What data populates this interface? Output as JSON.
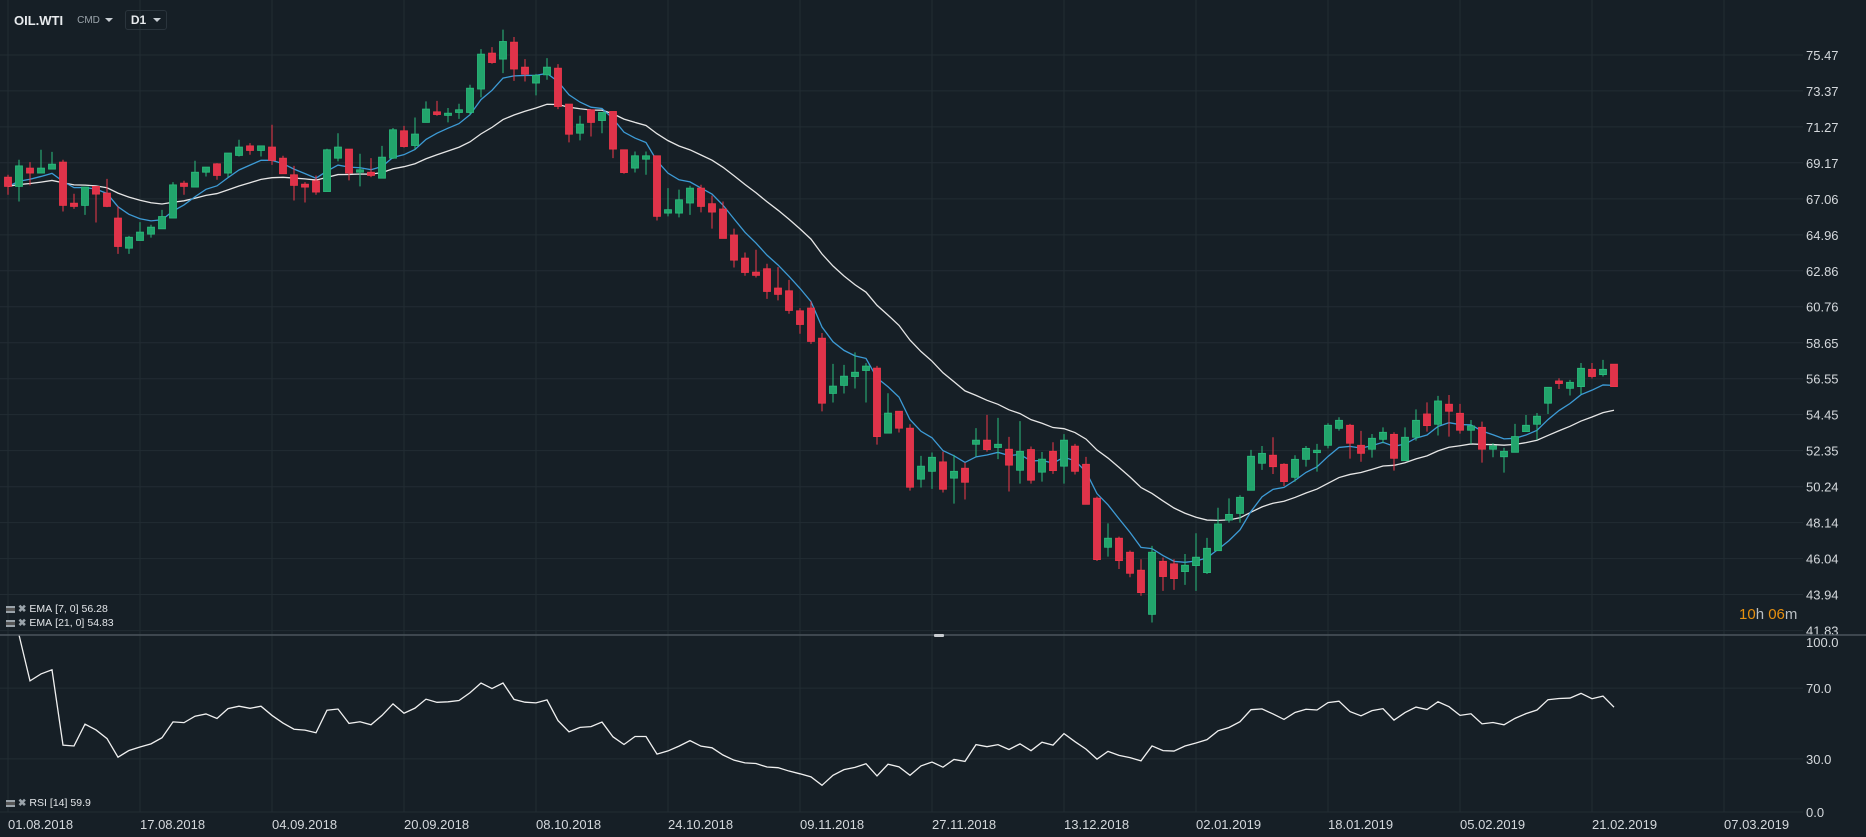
{
  "header": {
    "symbol": "OIL.WTI",
    "market": "CMD",
    "timeframe": "D1"
  },
  "indicators": {
    "ema7": {
      "label": "EMA",
      "params": "[7, 0]",
      "value": "56.28",
      "color": "#3d9bd6"
    },
    "ema21": {
      "label": "EMA",
      "params": "[21, 0]",
      "value": "54.83",
      "color": "#e6e6e6"
    },
    "rsi": {
      "label": "RSI",
      "params": "[14]",
      "value": "59.9",
      "color": "#f0f0f0"
    }
  },
  "countdown": {
    "hours": "10",
    "h_unit": "h",
    "minutes": "06",
    "m_unit": "m"
  },
  "colors": {
    "background": "#161f26",
    "grid": "#222c33",
    "up": "#22a56c",
    "down": "#e0334a",
    "countdown": "#e8900f"
  },
  "chart_data": {
    "type": "candlestick",
    "title": "OIL.WTI",
    "price_ticks": [
      "75.47",
      "73.37",
      "71.27",
      "69.17",
      "67.06",
      "64.96",
      "62.86",
      "60.76",
      "58.65",
      "56.55",
      "54.45",
      "52.35",
      "50.24",
      "48.14",
      "46.04",
      "43.94",
      "41.83"
    ],
    "ylim": [
      41.83,
      75.47
    ],
    "rsi_ticks": [
      "100.0",
      "70.0",
      "30.0",
      "0.0"
    ],
    "rsi_ylim": [
      0,
      100
    ],
    "date_ticks": [
      "01.08.2018",
      "17.08.2018",
      "04.09.2018",
      "20.09.2018",
      "08.10.2018",
      "24.10.2018",
      "09.11.2018",
      "27.11.2018",
      "13.12.2018",
      "02.01.2019",
      "18.01.2019",
      "05.02.2019",
      "21.02.2019",
      "07.03.2019"
    ],
    "grid": true,
    "ema_periods": [
      7,
      21
    ],
    "rsi_period": 14,
    "columns": [
      "date",
      "open",
      "high",
      "low",
      "close"
    ],
    "candles": [
      [
        "2018-08-01",
        68.33,
        68.47,
        67.3,
        67.79
      ],
      [
        "2018-08-02",
        67.79,
        69.35,
        66.91,
        68.99
      ],
      [
        "2018-08-03",
        68.86,
        69.21,
        67.85,
        68.57
      ],
      [
        "2018-08-06",
        68.57,
        69.93,
        68.57,
        68.86
      ],
      [
        "2018-08-07",
        68.8,
        69.81,
        68.8,
        69.09
      ],
      [
        "2018-08-08",
        69.21,
        69.35,
        66.32,
        66.68
      ],
      [
        "2018-08-09",
        66.81,
        67.36,
        66.48,
        66.62
      ],
      [
        "2018-08-10",
        66.68,
        67.75,
        66.13,
        67.75
      ],
      [
        "2018-08-13",
        67.79,
        67.79,
        65.68,
        67.34
      ],
      [
        "2018-08-14",
        67.4,
        68.23,
        66.58,
        66.62
      ],
      [
        "2018-08-15",
        65.94,
        66.62,
        63.85,
        64.28
      ],
      [
        "2018-08-16",
        64.18,
        64.9,
        63.85,
        64.82
      ],
      [
        "2018-08-17",
        64.63,
        65.7,
        64.63,
        65.12
      ],
      [
        "2018-08-20",
        65.0,
        65.55,
        64.8,
        65.41
      ],
      [
        "2018-08-21",
        65.31,
        66.42,
        65.31,
        66.03
      ],
      [
        "2018-08-22",
        65.94,
        68.04,
        65.94,
        67.88
      ],
      [
        "2018-08-23",
        67.98,
        68.12,
        67.3,
        67.79
      ],
      [
        "2018-08-24",
        67.75,
        69.29,
        67.75,
        68.62
      ],
      [
        "2018-08-27",
        68.62,
        68.92,
        68.37,
        68.92
      ],
      [
        "2018-08-28",
        69.11,
        69.15,
        68.18,
        68.43
      ],
      [
        "2018-08-29",
        68.57,
        69.74,
        68.33,
        69.74
      ],
      [
        "2018-08-30",
        69.6,
        70.52,
        69.54,
        70.09
      ],
      [
        "2018-08-31",
        70.16,
        70.32,
        69.64,
        69.89
      ],
      [
        "2018-09-03",
        69.89,
        70.16,
        69.54,
        70.16
      ],
      [
        "2018-09-04",
        70.09,
        71.39,
        69.05,
        69.31
      ],
      [
        "2018-09-05",
        69.44,
        69.58,
        68.53,
        68.53
      ],
      [
        "2018-09-06",
        68.47,
        68.99,
        66.97,
        67.85
      ],
      [
        "2018-09-07",
        67.92,
        68.04,
        66.85,
        67.75
      ],
      [
        "2018-09-10",
        68.12,
        68.43,
        67.3,
        67.46
      ],
      [
        "2018-09-11",
        67.49,
        69.99,
        67.49,
        69.93
      ],
      [
        "2018-09-12",
        69.44,
        70.9,
        69.25,
        70.09
      ],
      [
        "2018-09-13",
        69.97,
        69.97,
        68.14,
        68.57
      ],
      [
        "2018-09-14",
        68.62,
        69.7,
        67.79,
        68.76
      ],
      [
        "2018-09-17",
        68.62,
        69.44,
        68.33,
        68.43
      ],
      [
        "2018-09-18",
        68.27,
        70.16,
        68.27,
        69.5
      ],
      [
        "2018-09-19",
        69.44,
        71.2,
        69.4,
        71.1
      ],
      [
        "2018-09-20",
        71.04,
        71.33,
        70.06,
        70.12
      ],
      [
        "2018-09-21",
        70.18,
        71.82,
        69.93,
        70.85
      ],
      [
        "2018-09-24",
        71.53,
        72.76,
        71.53,
        72.31
      ],
      [
        "2018-09-25",
        72.15,
        72.79,
        71.92,
        71.99
      ],
      [
        "2018-09-26",
        71.94,
        72.37,
        71.53,
        72.07
      ],
      [
        "2018-09-27",
        72.11,
        72.62,
        71.74,
        72.27
      ],
      [
        "2018-09-28",
        72.11,
        73.73,
        71.97,
        73.53
      ],
      [
        "2018-10-01",
        73.48,
        75.81,
        72.99,
        75.52
      ],
      [
        "2018-10-02",
        75.58,
        75.93,
        74.96,
        75.03
      ],
      [
        "2018-10-03",
        75.23,
        76.95,
        74.41,
        76.26
      ],
      [
        "2018-10-04",
        76.22,
        76.52,
        73.96,
        74.65
      ],
      [
        "2018-10-05",
        74.76,
        75.23,
        73.92,
        74.35
      ],
      [
        "2018-10-08",
        73.83,
        74.37,
        73.11,
        74.28
      ],
      [
        "2018-10-09",
        74.31,
        75.29,
        74.02,
        74.76
      ],
      [
        "2018-10-10",
        74.7,
        74.94,
        72.31,
        72.46
      ],
      [
        "2018-10-11",
        72.6,
        72.6,
        70.36,
        70.84
      ],
      [
        "2018-10-12",
        70.9,
        71.92,
        70.48,
        71.43
      ],
      [
        "2018-10-15",
        72.27,
        72.27,
        70.71,
        71.53
      ],
      [
        "2018-10-16",
        71.64,
        72.11,
        70.9,
        72.11
      ],
      [
        "2018-10-17",
        72.17,
        72.17,
        69.44,
        69.97
      ],
      [
        "2018-10-18",
        69.93,
        69.93,
        68.53,
        68.6
      ],
      [
        "2018-10-19",
        68.86,
        69.83,
        68.6,
        69.58
      ],
      [
        "2018-10-22",
        69.38,
        69.83,
        68.47,
        69.58
      ],
      [
        "2018-10-23",
        69.58,
        69.6,
        65.8,
        66.04
      ],
      [
        "2018-10-24",
        66.23,
        67.69,
        66.04,
        66.43
      ],
      [
        "2018-10-25",
        66.23,
        67.6,
        65.98,
        67.01
      ],
      [
        "2018-10-26",
        66.82,
        67.83,
        66.13,
        67.69
      ],
      [
        "2018-10-29",
        67.69,
        67.89,
        66.27,
        66.62
      ],
      [
        "2018-10-30",
        66.78,
        67.25,
        65.32,
        66.29
      ],
      [
        "2018-10-31",
        66.47,
        66.91,
        64.75,
        64.75
      ],
      [
        "2018-11-01",
        64.95,
        65.32,
        63.05,
        63.48
      ],
      [
        "2018-11-02",
        63.6,
        63.93,
        62.57,
        62.76
      ],
      [
        "2018-11-05",
        62.78,
        64.09,
        62.47,
        62.59
      ],
      [
        "2018-11-06",
        62.98,
        63.27,
        61.22,
        61.65
      ],
      [
        "2018-11-07",
        61.85,
        63.07,
        61.13,
        61.48
      ],
      [
        "2018-11-08",
        61.69,
        62.33,
        60.35,
        60.54
      ],
      [
        "2018-11-09",
        60.52,
        60.68,
        59.18,
        59.72
      ],
      [
        "2018-11-12",
        60.68,
        61.07,
        58.59,
        58.73
      ],
      [
        "2018-11-13",
        58.92,
        59.22,
        54.64,
        55.12
      ],
      [
        "2018-11-14",
        55.69,
        57.42,
        55.16,
        56.12
      ],
      [
        "2018-11-15",
        56.16,
        57.36,
        55.69,
        56.7
      ],
      [
        "2018-11-16",
        56.68,
        58.09,
        55.98,
        56.93
      ],
      [
        "2018-11-19",
        57.03,
        57.46,
        55.16,
        57.29
      ],
      [
        "2018-11-20",
        57.17,
        57.3,
        52.7,
        53.17
      ],
      [
        "2018-11-21",
        53.37,
        55.7,
        53.37,
        54.54
      ],
      [
        "2018-11-22",
        54.65,
        54.65,
        53.41,
        53.66
      ],
      [
        "2018-11-23",
        53.66,
        53.89,
        50.01,
        50.21
      ],
      [
        "2018-11-26",
        50.68,
        52.04,
        50.19,
        51.44
      ],
      [
        "2018-11-27",
        51.14,
        52.24,
        50.11,
        51.96
      ],
      [
        "2018-11-28",
        51.69,
        52.29,
        49.9,
        50.09
      ],
      [
        "2018-11-29",
        50.74,
        52.1,
        49.25,
        51.14
      ],
      [
        "2018-11-30",
        51.32,
        51.65,
        49.49,
        50.5
      ],
      [
        "2018-12-03",
        52.72,
        53.66,
        52.0,
        52.96
      ],
      [
        "2018-12-04",
        52.96,
        54.44,
        52.29,
        52.41
      ],
      [
        "2018-12-05",
        52.53,
        54.26,
        51.85,
        52.72
      ],
      [
        "2018-12-06",
        52.43,
        53.15,
        49.96,
        51.5
      ],
      [
        "2018-12-07",
        51.2,
        54.07,
        50.42,
        52.31
      ],
      [
        "2018-12-10",
        52.41,
        52.59,
        50.42,
        50.62
      ],
      [
        "2018-12-11",
        51.09,
        52.27,
        50.54,
        51.85
      ],
      [
        "2018-12-12",
        52.31,
        52.84,
        50.99,
        51.18
      ],
      [
        "2018-12-13",
        51.44,
        53.31,
        50.42,
        52.96
      ],
      [
        "2018-12-14",
        52.61,
        52.74,
        50.95,
        51.14
      ],
      [
        "2018-12-17",
        51.55,
        51.98,
        49.21,
        49.21
      ],
      [
        "2018-12-18",
        49.57,
        49.66,
        45.9,
        45.98
      ],
      [
        "2018-12-19",
        46.7,
        48.1,
        46.15,
        47.23
      ],
      [
        "2018-12-20",
        47.23,
        47.32,
        45.43,
        45.92
      ],
      [
        "2018-12-21",
        46.41,
        46.51,
        44.95,
        45.18
      ],
      [
        "2018-12-24",
        45.36,
        46.0,
        43.87,
        44.05
      ],
      [
        "2018-12-26",
        42.78,
        46.78,
        42.3,
        46.41
      ],
      [
        "2018-12-27",
        45.88,
        46.1,
        44.15,
        44.99
      ],
      [
        "2018-12-28",
        45.73,
        46.0,
        44.21,
        44.87
      ],
      [
        "2018-12-31",
        45.28,
        46.31,
        44.5,
        45.65
      ],
      [
        "2019-01-02",
        45.63,
        47.52,
        44.15,
        46.12
      ],
      [
        "2019-01-03",
        45.22,
        47.25,
        45.14,
        46.64
      ],
      [
        "2019-01-04",
        46.5,
        49.01,
        46.5,
        48.06
      ],
      [
        "2019-01-07",
        48.29,
        49.56,
        48.14,
        48.62
      ],
      [
        "2019-01-08",
        48.68,
        49.74,
        48.14,
        49.62
      ],
      [
        "2019-01-09",
        50.03,
        52.39,
        50.03,
        52.02
      ],
      [
        "2019-01-10",
        51.61,
        52.62,
        51.22,
        52.19
      ],
      [
        "2019-01-11",
        52.08,
        53.13,
        50.98,
        51.41
      ],
      [
        "2019-01-14",
        51.55,
        51.61,
        50.28,
        50.54
      ],
      [
        "2019-01-15",
        50.79,
        52.08,
        50.54,
        51.84
      ],
      [
        "2019-01-16",
        51.84,
        52.62,
        51.41,
        52.48
      ],
      [
        "2019-01-17",
        52.23,
        52.74,
        51.12,
        52.37
      ],
      [
        "2019-01-18",
        52.66,
        53.95,
        52.48,
        53.83
      ],
      [
        "2019-01-21",
        53.65,
        54.3,
        53.52,
        54.12
      ],
      [
        "2019-01-22",
        53.83,
        53.91,
        51.88,
        52.78
      ],
      [
        "2019-01-23",
        52.66,
        53.5,
        51.7,
        52.19
      ],
      [
        "2019-01-24",
        52.43,
        53.32,
        51.94,
        53.07
      ],
      [
        "2019-01-25",
        53.01,
        53.71,
        52.78,
        53.42
      ],
      [
        "2019-01-28",
        53.3,
        53.42,
        51.18,
        51.9
      ],
      [
        "2019-01-29",
        51.76,
        53.71,
        51.76,
        53.13
      ],
      [
        "2019-01-30",
        53.13,
        54.76,
        52.93,
        54.12
      ],
      [
        "2019-01-31",
        54.49,
        55.17,
        53.46,
        53.81
      ],
      [
        "2019-02-01",
        53.89,
        55.55,
        53.23,
        55.25
      ],
      [
        "2019-02-04",
        55.06,
        55.6,
        53.17,
        54.65
      ],
      [
        "2019-02-05",
        54.53,
        55.08,
        53.34,
        53.54
      ],
      [
        "2019-02-06",
        53.54,
        54.14,
        52.74,
        53.79
      ],
      [
        "2019-02-07",
        53.71,
        54.04,
        51.65,
        52.43
      ],
      [
        "2019-02-08",
        52.43,
        52.78,
        51.96,
        52.62
      ],
      [
        "2019-02-11",
        51.99,
        52.52,
        51.06,
        52.31
      ],
      [
        "2019-02-12",
        52.25,
        53.91,
        52.25,
        53.17
      ],
      [
        "2019-02-13",
        53.46,
        54.43,
        53.46,
        53.83
      ],
      [
        "2019-02-14",
        53.89,
        54.55,
        52.97,
        54.36
      ],
      [
        "2019-02-15",
        55.12,
        56.05,
        54.49,
        56.05
      ],
      [
        "2019-02-18",
        56.42,
        56.58,
        55.95,
        56.27
      ],
      [
        "2019-02-19",
        55.99,
        56.48,
        55.57,
        56.34
      ],
      [
        "2019-02-20",
        56.09,
        57.47,
        55.66,
        57.16
      ],
      [
        "2019-02-21",
        57.1,
        57.47,
        56.56,
        56.68
      ],
      [
        "2019-02-22",
        56.79,
        57.65,
        56.68,
        57.1
      ],
      [
        "2019-02-25",
        57.4,
        57.4,
        56.09,
        56.09
      ]
    ]
  }
}
